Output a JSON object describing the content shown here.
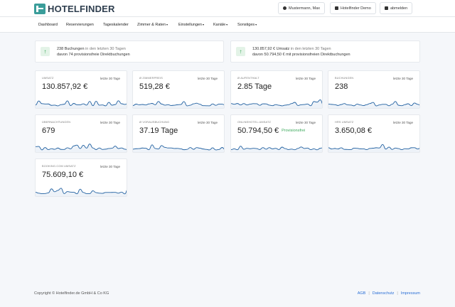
{
  "brand": {
    "name": "HOTELFINDER",
    "color": "#3a9d9a",
    "icon": "hotelfinder-logo-icon"
  },
  "header": {
    "user_label": "Mustermann, Max",
    "user_icon": "user-icon",
    "hotel_label": "Hotelfinder Demo",
    "hotel_icon": "building-icon",
    "logout_label": "abmelden",
    "logout_icon": "logout-icon"
  },
  "nav": {
    "items": [
      {
        "label": "Dashboard",
        "dropdown": false
      },
      {
        "label": "Reservierungen",
        "dropdown": false
      },
      {
        "label": "Tageskalender",
        "dropdown": false
      },
      {
        "label": "Zimmer & Raten",
        "dropdown": true
      },
      {
        "label": "Einstellungen",
        "dropdown": true
      },
      {
        "label": "Kanäle",
        "dropdown": true
      },
      {
        "label": "Sonstiges",
        "dropdown": true
      }
    ]
  },
  "info_boxes": [
    {
      "strong": "238 Buchungen",
      "muted": " in den letzten 30 Tagen",
      "line2": "davon 74 provisionsfreie Direktbuchungen"
    },
    {
      "strong": "130.857,92 € Umsatz",
      "muted": " in den letzten 30 Tagen",
      "line2": "davon 50.794,50 € mit provisionsfreien Direktbuchungen"
    }
  ],
  "cards": [
    {
      "title": "UMSATZ",
      "period": "letzte 30 Tage",
      "value": "130.857,92 €",
      "badge": ""
    },
    {
      "title": "Ø ZIMMERPREIS",
      "period": "letzte 30 Tage",
      "value": "519,28 €",
      "badge": ""
    },
    {
      "title": "Ø AUFENTHALT",
      "period": "letzte 30 Tage",
      "value": "2.85 Tage",
      "badge": ""
    },
    {
      "title": "BUCHUNGEN",
      "period": "letzte 30 Tage",
      "value": "238",
      "badge": ""
    },
    {
      "title": "ÜBERNACHTUNGEN",
      "period": "letzte 30 Tage",
      "value": "679",
      "badge": ""
    },
    {
      "title": "Ø VORAUSBUCHUNG",
      "period": "letzte 30 Tage",
      "value": "37.19 Tage",
      "badge": ""
    },
    {
      "title": "ONLINEHOTEL-UMSATZ",
      "period": "letzte 30 Tage",
      "value": "50.794,50 €",
      "badge": "Provisionsfrei"
    },
    {
      "title": "HRS UMSATZ",
      "period": "letzte 30 Tage",
      "value": "3.650,08 €",
      "badge": ""
    },
    {
      "title": "BOOKING.COM UMSATZ",
      "period": "letzte 30 Tage",
      "value": "75.609,10 €",
      "badge": ""
    }
  ],
  "sparkline_color": "#1f5fa0",
  "footer": {
    "copyright": "Copyright © Hotelfinder.de GmbH & Co KG",
    "links": [
      "AGB",
      "Datenschutz",
      "Impressum"
    ]
  }
}
